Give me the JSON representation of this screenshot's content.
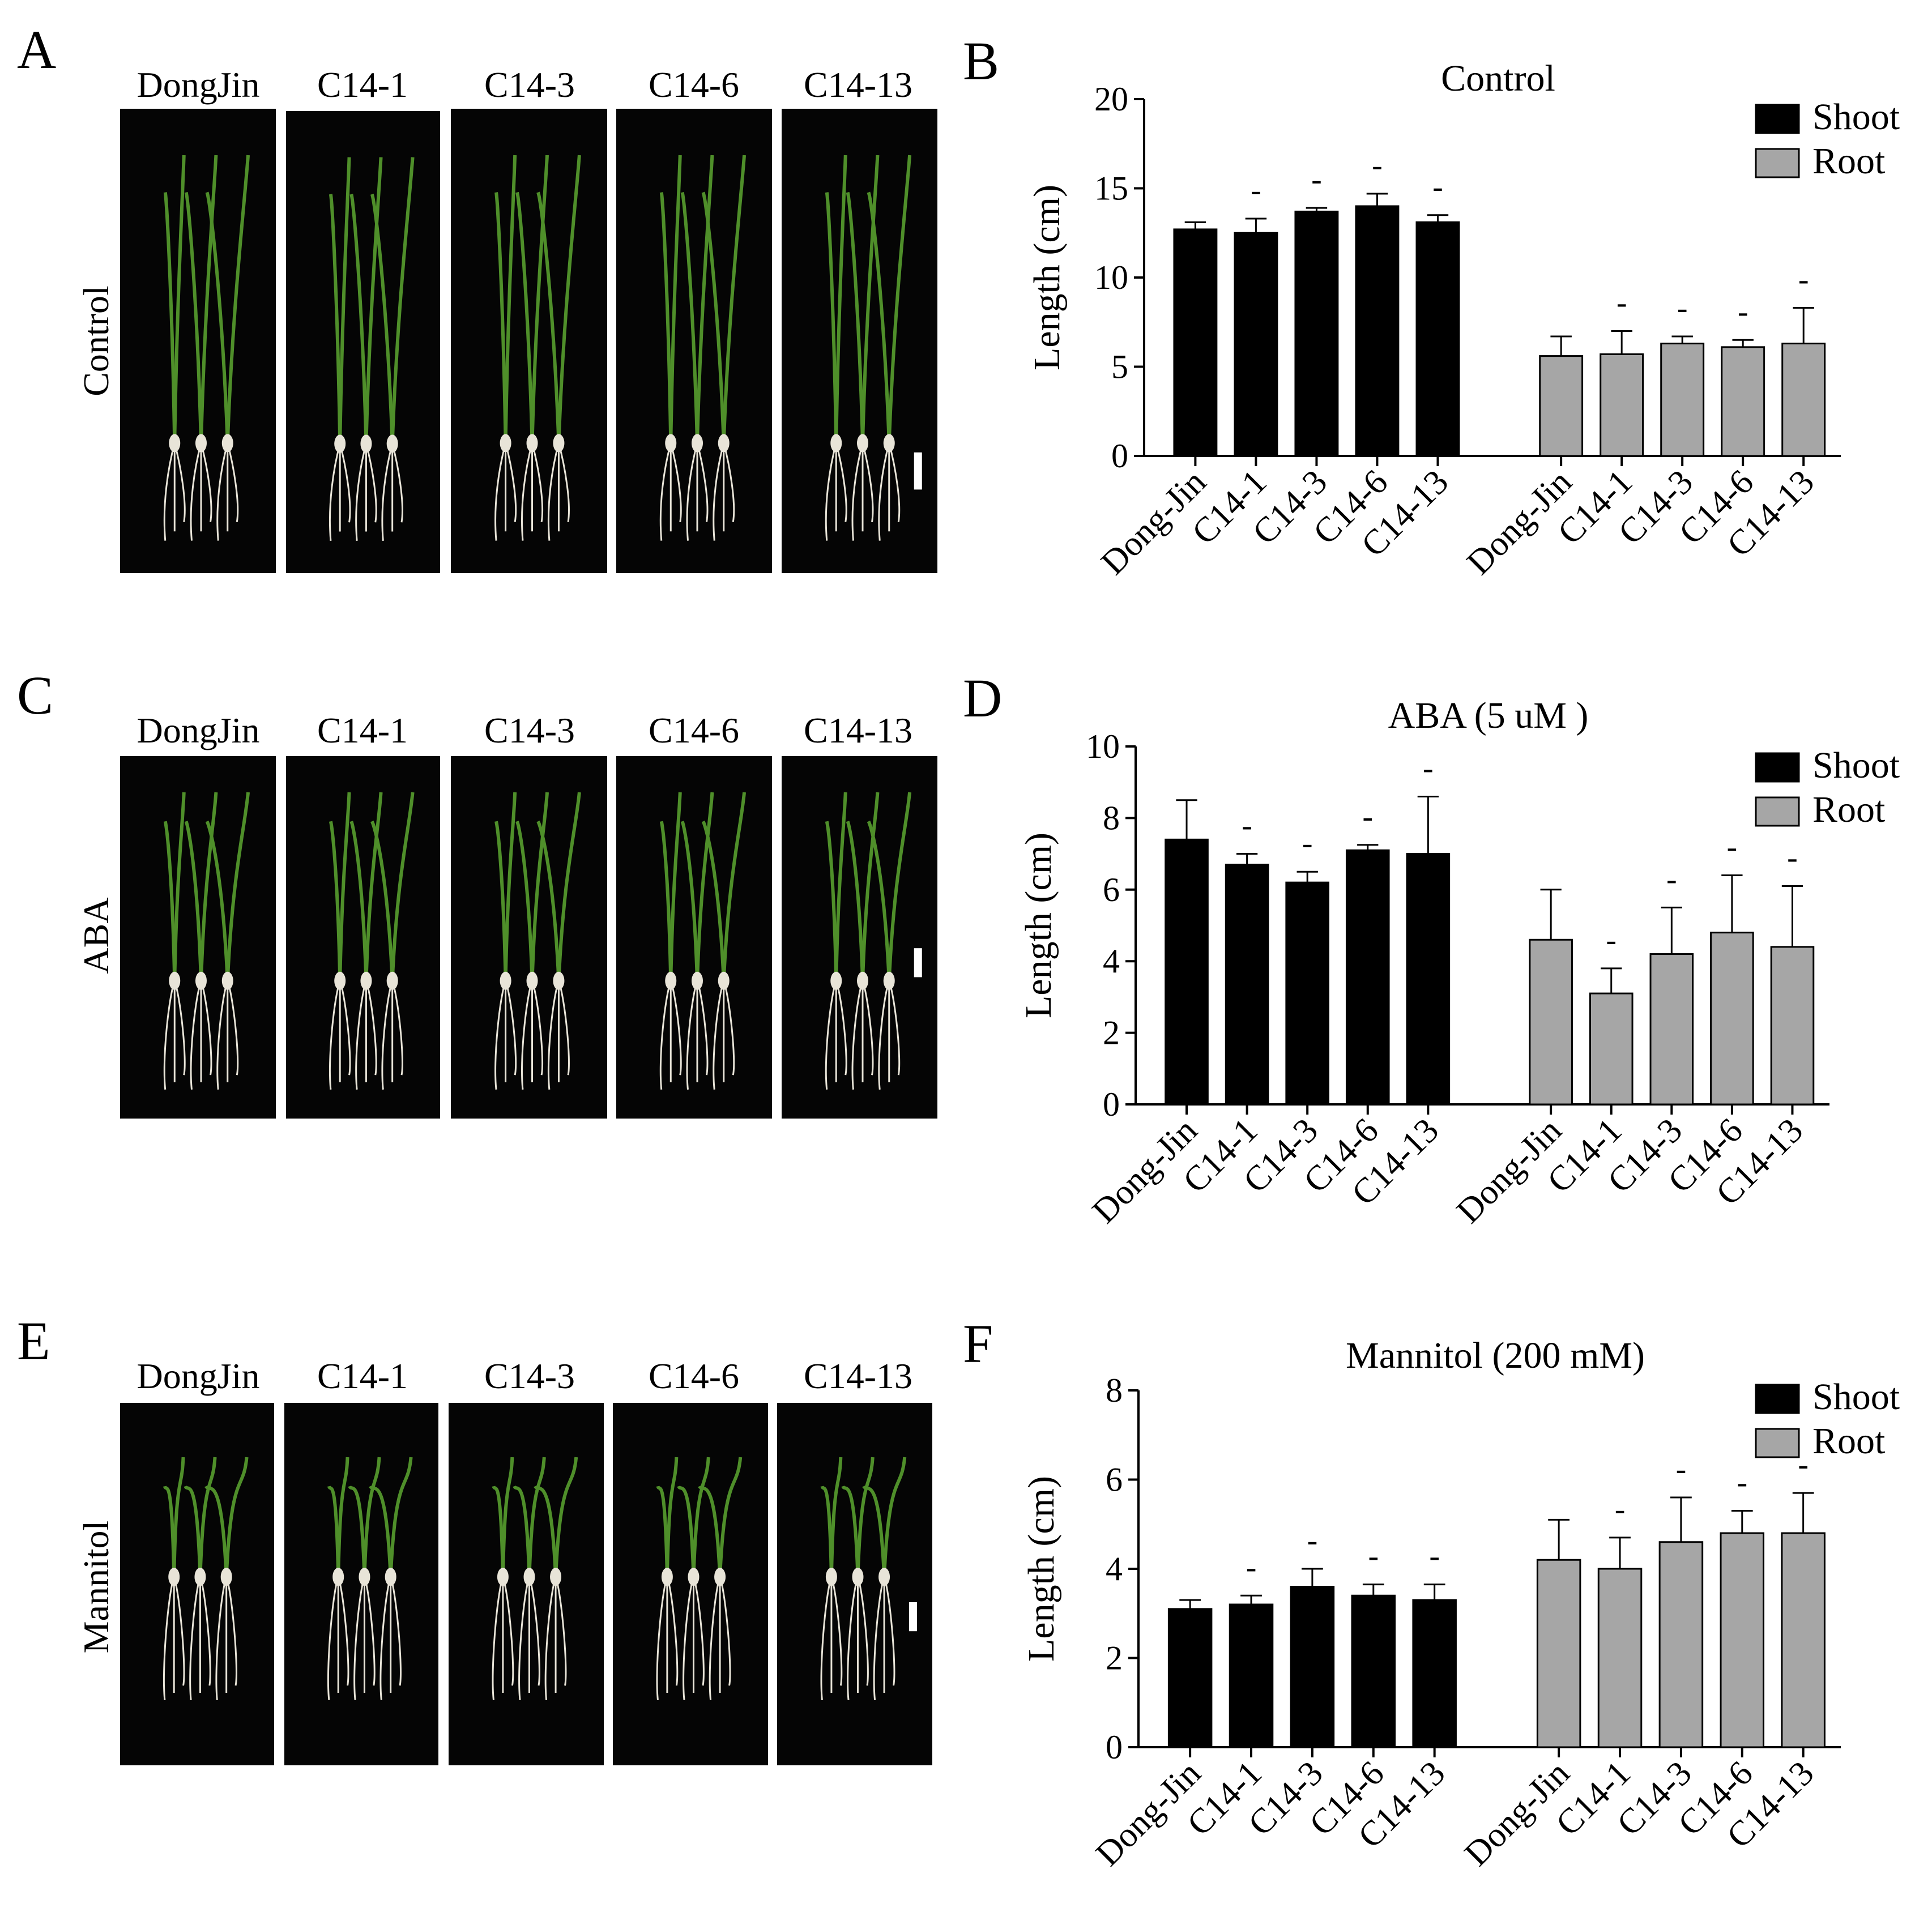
{
  "photo_rows": [
    {
      "letter": "A",
      "label": "Control",
      "genotypes": [
        "DongJin",
        "C14-1",
        "C14-3",
        "C14-6",
        "C14-13"
      ]
    },
    {
      "letter": "C",
      "label": "ABA",
      "genotypes": [
        "DongJin",
        "C14-1",
        "C14-3",
        "C14-6",
        "C14-13"
      ]
    },
    {
      "letter": "E",
      "label": "Mannitol",
      "genotypes": [
        "DongJin",
        "C14-1",
        "C14-3",
        "C14-6",
        "C14-13"
      ]
    }
  ],
  "colors": {
    "shoot": "#000000",
    "root": "#a6a6a6",
    "photo_bg": "#050505",
    "plant": "#4f8f2a",
    "root_color": "#e8e4d8"
  },
  "chart_data": [
    {
      "letter": "B",
      "type": "bar",
      "title": "Control",
      "ylabel": "Length (cm)",
      "ylim": [
        0,
        20
      ],
      "yticks": [
        0,
        5,
        10,
        15,
        20
      ],
      "categories": [
        "Dong-Jin",
        "C14-1",
        "C14-3",
        "C14-6",
        "C14-13"
      ],
      "legend_position": "top-right",
      "significance_mark": "-",
      "series": [
        {
          "name": "Shoot",
          "values": [
            12.7,
            12.5,
            13.7,
            14.0,
            13.1
          ],
          "errors": [
            0.4,
            0.8,
            0.2,
            0.7,
            0.4
          ],
          "marks": [
            "",
            "-",
            "-",
            "-",
            "-"
          ]
        },
        {
          "name": "Root",
          "values": [
            5.6,
            5.7,
            6.3,
            6.1,
            6.3
          ],
          "errors": [
            1.1,
            1.3,
            0.4,
            0.4,
            2.0
          ],
          "marks": [
            "",
            "-",
            "-",
            "-",
            "-"
          ]
        }
      ]
    },
    {
      "letter": "D",
      "type": "bar",
      "title": "ABA (5 uM )",
      "ylabel": "Length (cm)",
      "ylim": [
        0,
        10
      ],
      "yticks": [
        0,
        2,
        4,
        6,
        8,
        10
      ],
      "categories": [
        "Dong-Jin",
        "C14-1",
        "C14-3",
        "C14-6",
        "C14-13"
      ],
      "legend_position": "top-right",
      "significance_mark": "-",
      "series": [
        {
          "name": "Shoot",
          "values": [
            7.4,
            6.7,
            6.2,
            7.1,
            7.0
          ],
          "errors": [
            1.1,
            0.3,
            0.3,
            0.15,
            1.6
          ],
          "marks": [
            "",
            "-",
            "-",
            "-",
            "-"
          ]
        },
        {
          "name": "Root",
          "values": [
            4.6,
            3.1,
            4.2,
            4.8,
            4.4
          ],
          "errors": [
            1.4,
            0.7,
            1.3,
            1.6,
            1.7
          ],
          "marks": [
            "",
            "-",
            "-",
            "-",
            "-"
          ]
        }
      ]
    },
    {
      "letter": "F",
      "type": "bar",
      "title": "Mannitol (200 mM)",
      "ylabel": "Length (cm)",
      "ylim": [
        0,
        8
      ],
      "yticks": [
        0,
        2,
        4,
        6,
        8
      ],
      "categories": [
        "Dong-Jin",
        "C14-1",
        "C14-3",
        "C14-6",
        "C14-13"
      ],
      "legend_position": "top-right",
      "significance_mark": "-",
      "series": [
        {
          "name": "Shoot",
          "values": [
            3.1,
            3.2,
            3.6,
            3.4,
            3.3
          ],
          "errors": [
            0.2,
            0.2,
            0.4,
            0.25,
            0.35
          ],
          "marks": [
            "",
            "-",
            "-",
            "-",
            "-"
          ]
        },
        {
          "name": "Root",
          "values": [
            4.2,
            4.0,
            4.6,
            4.8,
            4.8
          ],
          "errors": [
            0.9,
            0.7,
            1.0,
            0.5,
            0.9
          ],
          "marks": [
            "",
            "-",
            "-",
            "-",
            "-"
          ]
        }
      ]
    }
  ]
}
